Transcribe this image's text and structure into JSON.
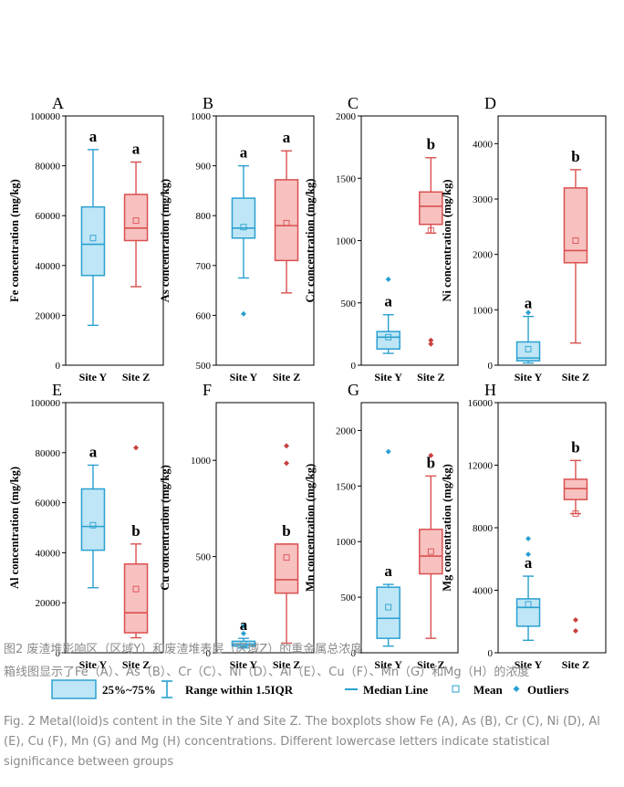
{
  "chart_data": [
    {
      "panel": "A",
      "type": "box",
      "ylabel": "Fe concentration (mg/kg)",
      "ylim": [
        0,
        100000
      ],
      "yticks": [
        "0",
        "20000",
        "40000",
        "60000",
        "80000",
        "100000"
      ],
      "categories": [
        "Site Y",
        "Site Z"
      ],
      "boxes": [
        {
          "site": "Site Y",
          "whisker_low": 16000,
          "q1": 36000,
          "median": 48500,
          "q3": 63500,
          "whisker_high": 86500,
          "mean": 51000,
          "outliers": [],
          "letter": "a"
        },
        {
          "site": "Site Z",
          "whisker_low": 31500,
          "q1": 50000,
          "median": 55000,
          "q3": 68500,
          "whisker_high": 81500,
          "mean": 58000,
          "outliers": [],
          "letter": "a"
        }
      ]
    },
    {
      "panel": "B",
      "type": "box",
      "ylabel": "As concentration (mg/kg)",
      "ylim": [
        500,
        1000
      ],
      "yticks": [
        "500",
        "600",
        "700",
        "800",
        "900",
        "1000"
      ],
      "categories": [
        "Site Y",
        "Site Z"
      ],
      "boxes": [
        {
          "site": "Site Y",
          "whisker_low": 675,
          "q1": 755,
          "median": 775,
          "q3": 835,
          "whisker_high": 900,
          "mean": 777,
          "outliers": [
            603
          ],
          "letter": "a"
        },
        {
          "site": "Site Z",
          "whisker_low": 645,
          "q1": 710,
          "median": 780,
          "q3": 872,
          "whisker_high": 930,
          "mean": 785,
          "outliers": [],
          "letter": "a"
        }
      ]
    },
    {
      "panel": "C",
      "type": "box",
      "ylabel": "Cr concentration (mg/kg)",
      "ylim": [
        0,
        2000
      ],
      "yticks": [
        "0",
        "500",
        "1000",
        "1500",
        "2000"
      ],
      "categories": [
        "Site Y",
        "Site Z"
      ],
      "boxes": [
        {
          "site": "Site Y",
          "whisker_low": 95,
          "q1": 130,
          "median": 225,
          "q3": 270,
          "whisker_high": 405,
          "mean": 225,
          "outliers": [
            690
          ],
          "letter": "a"
        },
        {
          "site": "Site Z",
          "whisker_low": 1060,
          "q1": 1130,
          "median": 1275,
          "q3": 1390,
          "whisker_high": 1665,
          "mean": 1080,
          "outliers": [
            170,
            200
          ],
          "letter": "b"
        }
      ]
    },
    {
      "panel": "D",
      "type": "box",
      "ylabel": "Ni concentration (mg/kg)",
      "ylim": [
        0,
        4500
      ],
      "yticks": [
        "0",
        "1000",
        "2000",
        "3000",
        "4000"
      ],
      "categories": [
        "Site Y",
        "Site Z"
      ],
      "boxes": [
        {
          "site": "Site Y",
          "whisker_low": 40,
          "q1": 80,
          "median": 130,
          "q3": 420,
          "whisker_high": 880,
          "mean": 290,
          "outliers": [
            950
          ],
          "letter": "a"
        },
        {
          "site": "Site Z",
          "whisker_low": 400,
          "q1": 1850,
          "median": 2070,
          "q3": 3200,
          "whisker_high": 3530,
          "mean": 2250,
          "outliers": [],
          "letter": "b"
        }
      ]
    },
    {
      "panel": "E",
      "type": "box",
      "ylabel": "Al concentration (mg/kg)",
      "ylim": [
        0,
        100000
      ],
      "yticks": [
        "0",
        "20000",
        "40000",
        "60000",
        "80000",
        "100000"
      ],
      "categories": [
        "Site Y",
        "Site Z"
      ],
      "boxes": [
        {
          "site": "Site Y",
          "whisker_low": 26000,
          "q1": 41000,
          "median": 50500,
          "q3": 65500,
          "whisker_high": 75000,
          "mean": 51000,
          "outliers": [],
          "letter": "a"
        },
        {
          "site": "Site Z",
          "whisker_low": 6000,
          "q1": 8000,
          "median": 16000,
          "q3": 35500,
          "whisker_high": 43500,
          "mean": 25500,
          "outliers": [
            82000
          ],
          "letter": "b"
        }
      ]
    },
    {
      "panel": "F",
      "type": "box",
      "ylabel": "Cu concentration (mg/kg)",
      "ylim": [
        0,
        1300
      ],
      "yticks": [
        "0",
        "500",
        "1000"
      ],
      "categories": [
        "Site Y",
        "Site Z"
      ],
      "boxes": [
        {
          "site": "Site Y",
          "whisker_low": 25,
          "q1": 35,
          "median": 45,
          "q3": 60,
          "whisker_high": 75,
          "mean": 45,
          "outliers": [
            100,
            140
          ],
          "letter": "a"
        },
        {
          "site": "Site Z",
          "whisker_low": 50,
          "q1": 310,
          "median": 380,
          "q3": 565,
          "whisker_high": 565,
          "mean": 495,
          "outliers": [
            985,
            1075
          ],
          "letter": "b"
        }
      ]
    },
    {
      "panel": "G",
      "type": "box",
      "ylabel": "Mn concentration (mg/kg)",
      "ylim": [
        0,
        2250
      ],
      "yticks": [
        "0",
        "500",
        "1000",
        "1500",
        "2000"
      ],
      "categories": [
        "Site Y",
        "Site Z"
      ],
      "boxes": [
        {
          "site": "Site Y",
          "whisker_low": 60,
          "q1": 130,
          "median": 310,
          "q3": 590,
          "whisker_high": 615,
          "mean": 410,
          "outliers": [
            1810
          ],
          "letter": "a"
        },
        {
          "site": "Site Z",
          "whisker_low": 130,
          "q1": 710,
          "median": 870,
          "q3": 1110,
          "whisker_high": 1590,
          "mean": 910,
          "outliers": [
            1775
          ],
          "letter": "b"
        }
      ]
    },
    {
      "panel": "H",
      "type": "box",
      "ylabel": "Mg concentration (mg/kg)",
      "ylim": [
        0,
        16000
      ],
      "yticks": [
        "0",
        "4000",
        "8000",
        "12000",
        "16000"
      ],
      "categories": [
        "Site Y",
        "Site Z"
      ],
      "boxes": [
        {
          "site": "Site Y",
          "whisker_low": 800,
          "q1": 1700,
          "median": 2900,
          "q3": 3450,
          "whisker_high": 4900,
          "mean": 3100,
          "outliers": [
            6300,
            7300
          ],
          "letter": "a"
        },
        {
          "site": "Site Z",
          "whisker_low": 8900,
          "q1": 9800,
          "median": 10500,
          "q3": 11100,
          "whisker_high": 12300,
          "mean": 8900,
          "outliers": [
            1400,
            2100
          ],
          "letter": "b"
        }
      ]
    }
  ],
  "legend": {
    "box_label": "25%~75%",
    "range_label": "Range within 1.5IQR",
    "median_label": "Median Line",
    "mean_label": "Mean",
    "outlier_label": "Outliers"
  },
  "colors": {
    "site_y_stroke": "#2aa0d0",
    "site_y_fill": "#bfe6f6",
    "site_z_stroke": "#d9504f",
    "site_z_fill": "#f7c1c0",
    "site_z_point": "#c8413f",
    "axis": "#000000"
  },
  "caption": {
    "zh_title": "图2 废渣堆影响区（区域Y）和废渣堆表层（区域Z）的重金属总浓度",
    "zh_body": "箱线图显示了Fe（A）、As（B）、Cr（C）、Ni（D）、Al（E）、Cu（F）、Mn（G）和Mg（H）的浓度",
    "en": "Fig. 2 Metal(loid)s content in the Site Y and Site Z. The boxplots show Fe (A), As (B), Cr (C), Ni (D), Al (E), Cu (F), Mn (G) and Mg (H) concentrations. Different lowercase letters indicate statistical significance between groups"
  }
}
